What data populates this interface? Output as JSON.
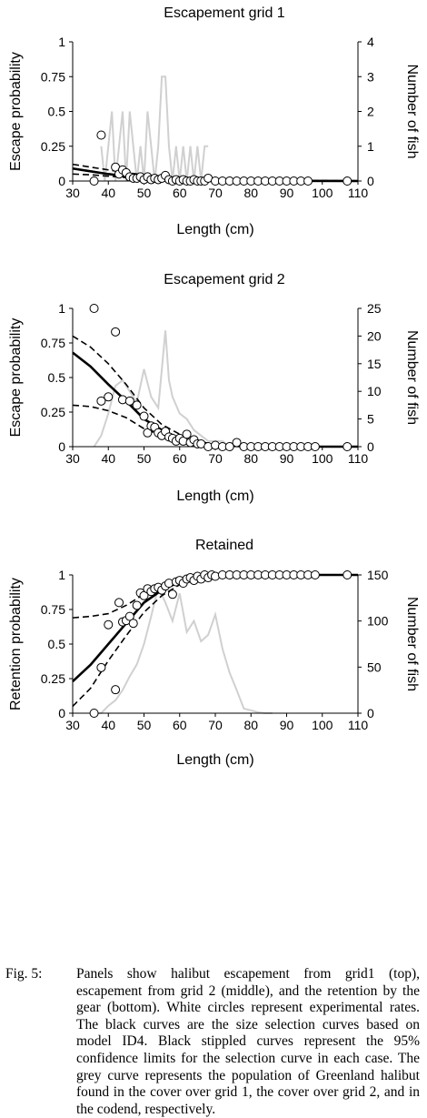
{
  "chart_data": [
    {
      "type": "line",
      "title": "Escapement grid 1",
      "xlabel": "Length (cm)",
      "ylabel": "Escape probability",
      "y2label": "Number of fish",
      "xlim": [
        30,
        110
      ],
      "ylim": [
        0,
        1
      ],
      "y2lim": [
        0,
        4
      ],
      "xticks": [
        "30",
        "40",
        "50",
        "60",
        "70",
        "80",
        "90",
        "100",
        "110"
      ],
      "yticks": [
        "0",
        "0.25",
        "0.5",
        "0.75",
        "1"
      ],
      "y2ticks": [
        "0",
        "1",
        "2",
        "3",
        "4"
      ],
      "curve": {
        "x": [
          30,
          35,
          40,
          45,
          50,
          55,
          60,
          65,
          70,
          80,
          90,
          110
        ],
        "y": [
          0.09,
          0.07,
          0.05,
          0.035,
          0.025,
          0.015,
          0.01,
          0.006,
          0.004,
          0.002,
          0.001,
          0.0
        ]
      },
      "ci_upper": {
        "x": [
          30,
          35,
          40,
          45,
          50,
          55,
          60,
          65,
          70,
          80,
          110
        ],
        "y": [
          0.12,
          0.1,
          0.08,
          0.06,
          0.045,
          0.03,
          0.02,
          0.012,
          0.008,
          0.004,
          0.002
        ]
      },
      "ci_lower": {
        "x": [
          30,
          35,
          40,
          45,
          50,
          55,
          60,
          65,
          70,
          80,
          110
        ],
        "y": [
          0.05,
          0.045,
          0.035,
          0.025,
          0.015,
          0.01,
          0.006,
          0.003,
          0.002,
          0.001,
          0.0
        ]
      },
      "observed": {
        "x": [
          36,
          38,
          42,
          43,
          44,
          45,
          46,
          47,
          48,
          49,
          50,
          51,
          52,
          53,
          54,
          55,
          56,
          57,
          58,
          59,
          60,
          61,
          62,
          63,
          64,
          65,
          66,
          67,
          68,
          70,
          72,
          74,
          76,
          78,
          80,
          82,
          84,
          86,
          88,
          90,
          92,
          94,
          96,
          107
        ],
        "y": [
          0,
          0.33,
          0.1,
          0.05,
          0.08,
          0.06,
          0.03,
          0.02,
          0.02,
          0.03,
          0.01,
          0.03,
          0.01,
          0.02,
          0.01,
          0.02,
          0.04,
          0.01,
          0,
          0.01,
          0,
          0.01,
          0,
          0,
          0.01,
          0,
          0,
          0,
          0.02,
          0,
          0,
          0,
          0,
          0,
          0,
          0,
          0,
          0,
          0,
          0,
          0,
          0,
          0,
          0
        ]
      },
      "population": {
        "x": [
          38,
          39,
          40,
          41,
          42,
          43,
          44,
          45,
          46,
          47,
          48,
          49,
          50,
          51,
          52,
          53,
          54,
          55,
          56,
          57,
          58,
          59,
          60,
          61,
          62,
          63,
          64,
          65,
          66,
          67,
          68
        ],
        "y": [
          1,
          0,
          1,
          2,
          0,
          1,
          2,
          0,
          2,
          1,
          0,
          1,
          0,
          2,
          1,
          0,
          1,
          3,
          3,
          1,
          0,
          1,
          0,
          1,
          0,
          1,
          0,
          1,
          0,
          1,
          1
        ]
      }
    },
    {
      "type": "line",
      "title": "Escapement grid 2",
      "xlabel": "Length (cm)",
      "ylabel": "Escape probability",
      "y2label": "Number of fish",
      "xlim": [
        30,
        110
      ],
      "ylim": [
        0,
        1
      ],
      "y2lim": [
        0,
        25
      ],
      "xticks": [
        "30",
        "40",
        "50",
        "60",
        "70",
        "80",
        "90",
        "100",
        "110"
      ],
      "yticks": [
        "0",
        "0.25",
        "0.5",
        "0.75",
        "1"
      ],
      "y2ticks": [
        "0",
        "5",
        "10",
        "15",
        "20",
        "25"
      ],
      "curve": {
        "x": [
          30,
          35,
          40,
          45,
          50,
          55,
          60,
          65,
          70,
          75,
          80,
          90,
          110
        ],
        "y": [
          0.68,
          0.58,
          0.45,
          0.33,
          0.2,
          0.12,
          0.06,
          0.03,
          0.01,
          0.005,
          0.002,
          0.0,
          0.0
        ]
      },
      "ci_upper": {
        "x": [
          30,
          35,
          40,
          45,
          50,
          55,
          60,
          65,
          70,
          75,
          80,
          110
        ],
        "y": [
          0.8,
          0.72,
          0.6,
          0.45,
          0.28,
          0.16,
          0.09,
          0.04,
          0.015,
          0.005,
          0.002,
          0.0
        ]
      },
      "ci_lower": {
        "x": [
          30,
          35,
          40,
          45,
          50,
          55,
          60,
          65,
          70,
          75,
          80,
          110
        ],
        "y": [
          0.3,
          0.29,
          0.26,
          0.21,
          0.13,
          0.08,
          0.04,
          0.02,
          0.006,
          0.002,
          0.0,
          0.0
        ]
      },
      "observed": {
        "x": [
          36,
          38,
          40,
          42,
          44,
          46,
          48,
          50,
          51,
          52,
          53,
          54,
          55,
          56,
          57,
          58,
          59,
          60,
          61,
          62,
          63,
          64,
          65,
          66,
          68,
          70,
          72,
          74,
          76,
          78,
          80,
          82,
          84,
          86,
          88,
          90,
          92,
          94,
          96,
          98,
          107
        ],
        "y": [
          1,
          0.33,
          0.36,
          0.83,
          0.34,
          0.33,
          0.3,
          0.22,
          0.1,
          0.15,
          0.14,
          0.1,
          0.08,
          0.11,
          0.07,
          0.06,
          0.04,
          0.06,
          0.04,
          0.09,
          0.03,
          0.05,
          0.02,
          0.02,
          0,
          0.01,
          0,
          0,
          0.03,
          0,
          0,
          0,
          0,
          0,
          0,
          0,
          0,
          0,
          0,
          0,
          0
        ]
      },
      "population": {
        "x": [
          36,
          38,
          40,
          42,
          44,
          46,
          48,
          50,
          52,
          54,
          55,
          56,
          57,
          58,
          60,
          62,
          64,
          66,
          68,
          70,
          72,
          74,
          76,
          78,
          80
        ],
        "y": [
          0,
          2,
          6,
          11,
          12,
          10,
          8,
          14,
          9,
          7,
          14,
          21,
          12,
          9,
          6,
          5,
          3,
          2,
          1,
          1,
          1,
          0,
          1,
          0,
          0
        ]
      }
    },
    {
      "type": "line",
      "title": "Retained",
      "xlabel": "Length (cm)",
      "ylabel": "Retention probability",
      "y2label": "Number of fish",
      "xlim": [
        30,
        110
      ],
      "ylim": [
        0,
        1
      ],
      "y2lim": [
        0,
        150
      ],
      "xticks": [
        "30",
        "40",
        "50",
        "60",
        "70",
        "80",
        "90",
        "100",
        "110"
      ],
      "yticks": [
        "0",
        "0.25",
        "0.5",
        "0.75",
        "1"
      ],
      "y2ticks": [
        "0",
        "50",
        "100",
        "150"
      ],
      "curve": {
        "x": [
          30,
          35,
          40,
          45,
          50,
          55,
          60,
          65,
          70,
          75,
          80,
          90,
          110
        ],
        "y": [
          0.23,
          0.35,
          0.5,
          0.65,
          0.8,
          0.89,
          0.95,
          0.98,
          0.99,
          1.0,
          1.0,
          1.0,
          1.0
        ]
      },
      "ci_upper": {
        "x": [
          30,
          35,
          40,
          45,
          50,
          55,
          60,
          65,
          70,
          80,
          110
        ],
        "y": [
          0.69,
          0.7,
          0.72,
          0.78,
          0.86,
          0.93,
          0.97,
          0.99,
          1.0,
          1.0,
          1.0
        ]
      },
      "ci_lower": {
        "x": [
          30,
          35,
          40,
          45,
          50,
          55,
          60,
          65,
          70,
          80,
          110
        ],
        "y": [
          0.05,
          0.18,
          0.38,
          0.56,
          0.73,
          0.85,
          0.93,
          0.97,
          0.99,
          1.0,
          1.0
        ]
      },
      "observed": {
        "x": [
          36,
          38,
          40,
          42,
          43,
          44,
          45,
          46,
          47,
          48,
          49,
          50,
          51,
          52,
          53,
          54,
          55,
          56,
          57,
          58,
          59,
          60,
          61,
          62,
          63,
          64,
          65,
          66,
          67,
          68,
          69,
          70,
          72,
          74,
          76,
          78,
          80,
          82,
          84,
          86,
          88,
          90,
          92,
          94,
          96,
          98,
          107
        ],
        "y": [
          0,
          0.33,
          0.64,
          0.17,
          0.8,
          0.66,
          0.67,
          0.7,
          0.65,
          0.78,
          0.87,
          0.85,
          0.9,
          0.88,
          0.9,
          0.91,
          0.89,
          0.92,
          0.94,
          0.86,
          0.95,
          0.96,
          0.94,
          0.97,
          0.98,
          0.96,
          0.99,
          0.97,
          1,
          0.98,
          1,
          0.99,
          1,
          1,
          1,
          1,
          1,
          1,
          1,
          1,
          1,
          1,
          1,
          1,
          1,
          1,
          1
        ]
      },
      "population": {
        "x": [
          36,
          38,
          40,
          42,
          44,
          46,
          48,
          50,
          52,
          54,
          56,
          58,
          60,
          62,
          64,
          66,
          68,
          70,
          72,
          74,
          76,
          78,
          80,
          82,
          84,
          86
        ],
        "y": [
          0,
          0,
          8,
          14,
          25,
          40,
          53,
          75,
          105,
          137,
          120,
          100,
          130,
          88,
          100,
          78,
          85,
          107,
          70,
          44,
          25,
          5,
          3,
          1,
          0,
          0
        ]
      }
    }
  ],
  "caption": {
    "label": "Fig. 5:",
    "text": "Panels show halibut escapement from grid1 (top), escapement from grid 2 (middle), and the retention by the gear (bottom). White circles represent experimental rates. The black curves are the size selection curves based on model ID4. Black stippled curves represent the 95% confidence limits for the selection curve in each case. The grey curve represents the population of Greenland halibut found in the cover over grid 1, the cover over grid 2, and in the codend, respectively."
  }
}
